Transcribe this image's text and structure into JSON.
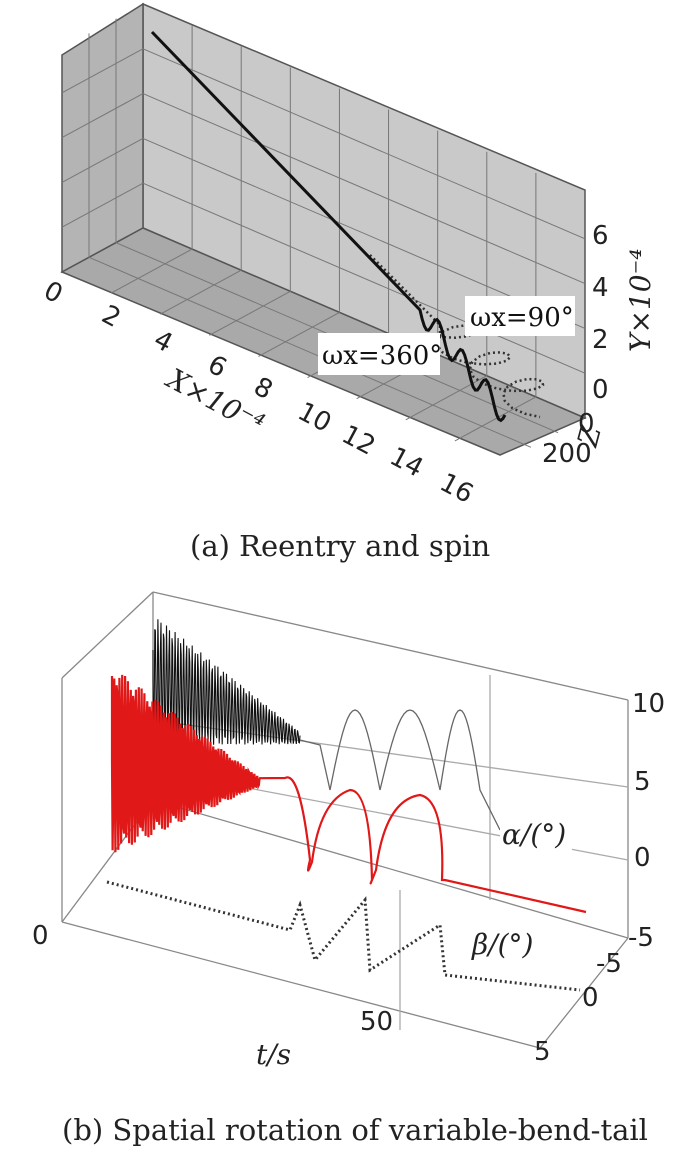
{
  "chart_data": [
    {
      "panel": "a",
      "type": "line-3d",
      "caption": "(a) Reentry and spin",
      "axes": {
        "x": {
          "label": "X×10⁻⁴",
          "ticks": [
            "0",
            "2",
            "4",
            "6",
            "8",
            "10",
            "12",
            "14",
            "16"
          ],
          "range": [
            0,
            16
          ]
        },
        "y": {
          "label": "Y×10⁻⁴",
          "ticks": [
            "0",
            "2",
            "4",
            "6"
          ],
          "range": [
            0,
            7
          ]
        },
        "z": {
          "label": "Z",
          "ticks": [
            "0",
            "200"
          ],
          "range": [
            0,
            200
          ]
        }
      },
      "annotations": [
        "ωx=90°",
        "ωx=360°"
      ],
      "series": [
        {
          "name": "ωx=360°",
          "style": "solid"
        },
        {
          "name": "ωx=90°",
          "style": "dotted"
        }
      ],
      "grid": true
    },
    {
      "panel": "b",
      "type": "line-3d",
      "caption": "(b) Spatial rotation of variable-bend-tail",
      "axes": {
        "t": {
          "label": "t/s",
          "ticks": [
            "0",
            "50"
          ]
        },
        "z": {
          "ticks": [
            "10",
            "5",
            "0",
            "-5"
          ]
        },
        "depth": {
          "ticks": [
            "-5",
            "0",
            "5"
          ]
        }
      },
      "series": [
        {
          "name": "α/(°)",
          "style": "solid"
        },
        {
          "name": "β/(°)",
          "style": "dotted"
        }
      ],
      "colors": {
        "alpha_front": "#e01818",
        "alpha_back": "#111111",
        "beta": "#333333"
      },
      "grid": true
    }
  ]
}
